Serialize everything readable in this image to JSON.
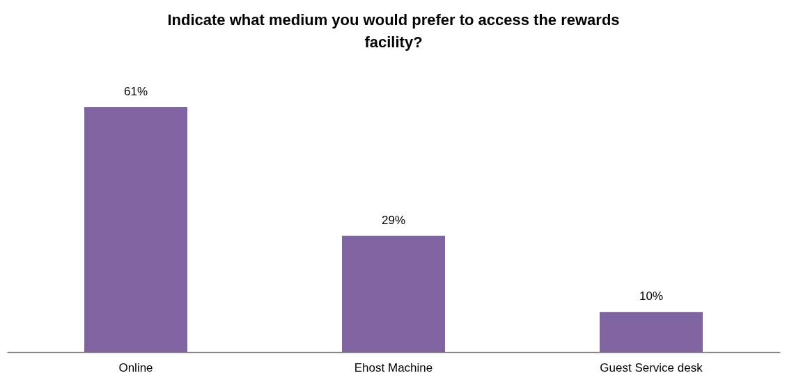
{
  "chart_data": {
    "type": "bar",
    "title": "Indicate what medium you would prefer to access the rewards facility?",
    "categories": [
      "Online",
      "Ehost Machine",
      "Guest Service desk"
    ],
    "values": [
      61,
      29,
      10
    ],
    "value_labels": [
      "61%",
      "29%",
      "10%"
    ],
    "color": "#8064a2"
  }
}
